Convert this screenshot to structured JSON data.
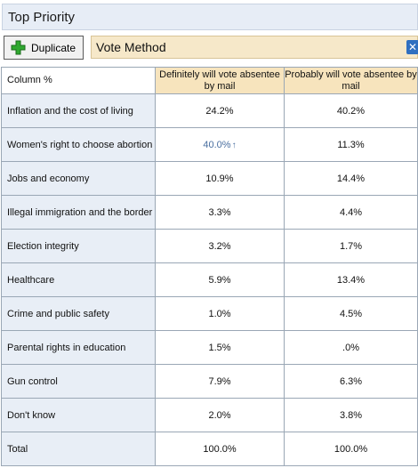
{
  "title": "Top Priority",
  "toolbar": {
    "duplicate_label": "Duplicate",
    "close_glyph": "✕"
  },
  "filter": {
    "label": "Vote Method"
  },
  "table": {
    "corner_label": "Column %",
    "columns": [
      "Definitely will vote absentee by mail",
      "Probably will vote absentee by mail"
    ],
    "rows": [
      {
        "label": "Inflation and the cost of living",
        "values": [
          "24.2%",
          "40.2%"
        ]
      },
      {
        "label": "Women's right to choose abortion",
        "values": [
          "40.0%",
          "11.3%"
        ],
        "up_arrow": "↑"
      },
      {
        "label": "Jobs and economy",
        "values": [
          "10.9%",
          "14.4%"
        ]
      },
      {
        "label": "Illegal immigration and the border",
        "values": [
          "3.3%",
          "4.4%"
        ]
      },
      {
        "label": "Election integrity",
        "values": [
          "3.2%",
          "1.7%"
        ]
      },
      {
        "label": "Healthcare",
        "values": [
          "5.9%",
          "13.4%"
        ]
      },
      {
        "label": "Crime and public safety",
        "values": [
          "1.0%",
          "4.5%"
        ]
      },
      {
        "label": "Parental rights in education",
        "values": [
          "1.5%",
          ".0%"
        ]
      },
      {
        "label": "Gun control",
        "values": [
          "7.9%",
          "6.3%"
        ]
      },
      {
        "label": "Don't know",
        "values": [
          "2.0%",
          "3.8%"
        ]
      },
      {
        "label": "Total",
        "values": [
          "100.0%",
          "100.0%"
        ]
      }
    ]
  },
  "colors": {
    "title_bg": "#e7edf6",
    "filter_bg": "#f6e8c9",
    "header_bg": "#f7e4bd",
    "rowlabel_bg": "#e8eef6",
    "sig_text": "#4a6fa0",
    "plus_green": "#2fa82f"
  },
  "icons": {
    "duplicate": "plus-icon",
    "close": "close-icon"
  }
}
